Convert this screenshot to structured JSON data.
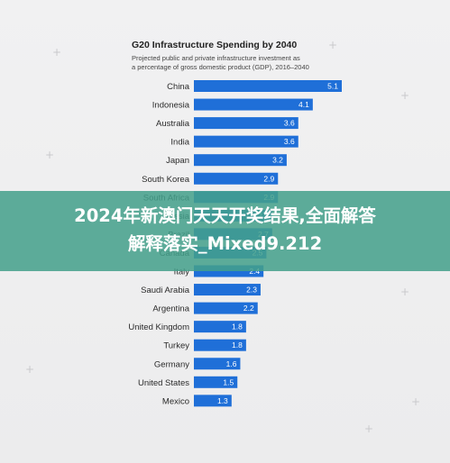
{
  "chart_data": {
    "type": "bar",
    "orientation": "horizontal",
    "title": "G20 Infrastructure Spending by 2040",
    "subtitle_line1": "Projected public and private infrastructure investment as",
    "subtitle_line2": "a percentage of gross domestic product (GDP), 2016–2040",
    "categories": [
      "China",
      "Indonesia",
      "Australia",
      "India",
      "Japan",
      "South Korea",
      "South Africa",
      "Russia",
      "Brazil",
      "Canada",
      "Italy",
      "Saudi Arabia",
      "Argentina",
      "United Kingdom",
      "Turkey",
      "Germany",
      "United States",
      "Mexico"
    ],
    "values": [
      5.1,
      4.1,
      3.6,
      3.6,
      3.2,
      2.9,
      2.9,
      2.7,
      2.7,
      2.5,
      2.4,
      2.3,
      2.2,
      1.8,
      1.8,
      1.6,
      1.5,
      1.3
    ],
    "value_labels": [
      "5.1",
      "4.1",
      "3.6",
      "3.6",
      "3.2",
      "2.9",
      "2.9",
      "2.7",
      "2.7",
      "2.5",
      "2.4",
      "2.3",
      "2.2",
      "1.8",
      "1.8",
      "1.6",
      "1.5",
      "1.3"
    ],
    "bar_color": "#1f6fd8",
    "xlim": [
      0,
      5.1
    ],
    "grid": false,
    "legend": "none"
  },
  "watermark": {
    "line1": "2024年新澳门天天开奖结果,全面解答",
    "line2": "解释落实_Mixed9.212"
  }
}
